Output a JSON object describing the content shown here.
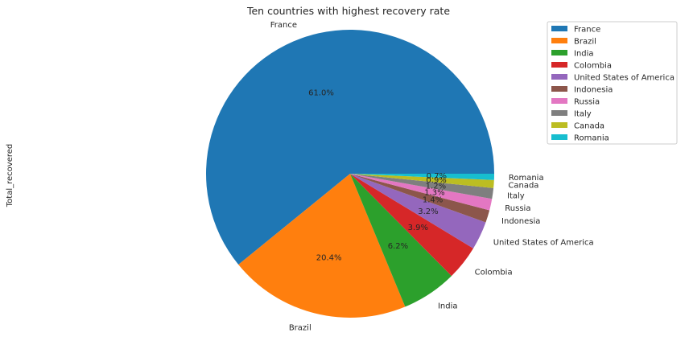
{
  "chart_data": {
    "type": "pie",
    "title": "Ten countries with highest recovery rate",
    "ylabel": "Total_recovered",
    "categories": [
      "France",
      "Brazil",
      "India",
      "Colombia",
      "United States of America",
      "Indonesia",
      "Russia",
      "Italy",
      "Canada",
      "Romania"
    ],
    "percent_labels": [
      "61.0%",
      "20.4%",
      "6.2%",
      "3.9%",
      "3.2%",
      "1.4%",
      "1.3%",
      "1.2%",
      "0.9%",
      "0.7%"
    ],
    "values": [
      61.0,
      20.4,
      6.2,
      3.9,
      3.2,
      1.4,
      1.3,
      1.2,
      0.9,
      0.7
    ],
    "colors": [
      "#1f77b4",
      "#ff7f0e",
      "#2ca02c",
      "#d62728",
      "#9467bd",
      "#8c564b",
      "#e377c2",
      "#7f7f7f",
      "#bcbd22",
      "#17becf"
    ],
    "legend_position": "top-right"
  }
}
